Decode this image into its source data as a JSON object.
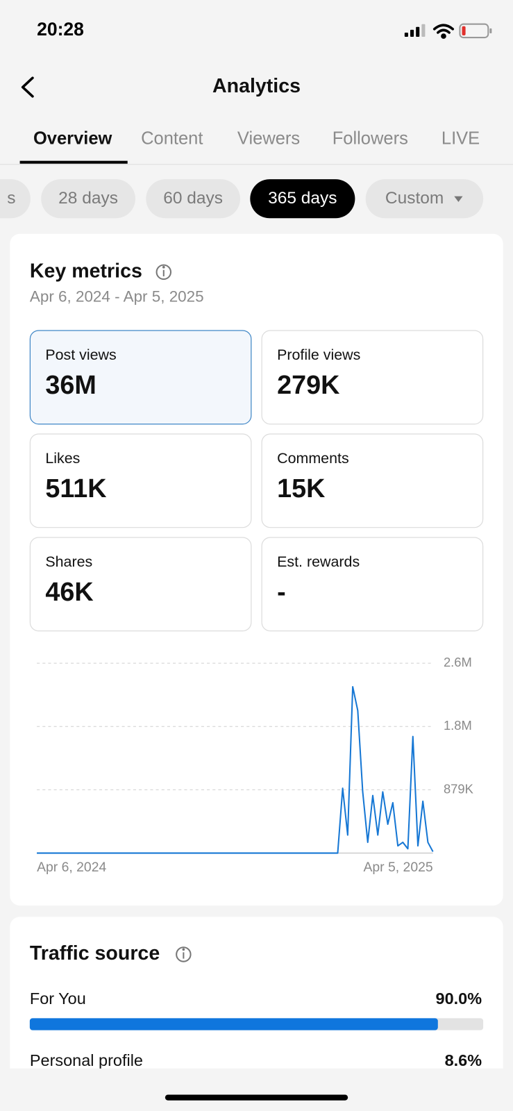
{
  "status_bar": {
    "time": "20:28"
  },
  "header": {
    "title": "Analytics"
  },
  "tabs": [
    "Overview",
    "Content",
    "Viewers",
    "Followers",
    "LIVE"
  ],
  "date_filters": [
    "s",
    "28 days",
    "60 days",
    "365 days",
    "Custom"
  ],
  "key_metrics": {
    "title": "Key metrics",
    "date_range": "Apr 6, 2024 - Apr 5, 2025",
    "metrics": [
      {
        "label": "Post views",
        "value": "36M"
      },
      {
        "label": "Profile views",
        "value": "279K"
      },
      {
        "label": "Likes",
        "value": "511K"
      },
      {
        "label": "Comments",
        "value": "15K"
      },
      {
        "label": "Shares",
        "value": "46K"
      },
      {
        "label": "Est. rewards",
        "value": "-"
      }
    ]
  },
  "chart_data": {
    "type": "line",
    "color": "#1677d4",
    "grid": true,
    "categories": [
      "Apr 6, 2024",
      null,
      null,
      null,
      null,
      null,
      null,
      null,
      null,
      null,
      null,
      null,
      null,
      null,
      null,
      null,
      null,
      null,
      null,
      null,
      null,
      null,
      null,
      null,
      null,
      null,
      null,
      null,
      null,
      null,
      null,
      null,
      null,
      null,
      null,
      null,
      null,
      null,
      null,
      null,
      null,
      null,
      null,
      null,
      null,
      null,
      null,
      null,
      null,
      null,
      null,
      null,
      null,
      null,
      null,
      null,
      null,
      null,
      null,
      null,
      null,
      null,
      null,
      null,
      null,
      null,
      null,
      null,
      null,
      null,
      null,
      null,
      null,
      null,
      null,
      null,
      null,
      null,
      null,
      "Apr 5, 2025"
    ],
    "values": [
      0,
      0,
      0,
      0,
      0,
      0,
      0,
      0,
      0,
      0,
      0,
      0,
      0,
      0,
      0,
      0,
      0,
      0,
      0,
      0,
      0,
      0,
      0,
      0,
      0,
      0,
      0,
      0,
      0,
      0,
      0,
      0,
      0,
      0,
      0,
      0,
      0,
      0,
      0,
      0,
      0,
      0,
      0,
      0,
      0,
      0,
      0,
      0,
      0,
      0,
      0,
      0,
      0,
      0,
      0,
      0,
      0,
      0,
      0,
      0,
      0,
      900000,
      250000,
      2310000,
      1980000,
      850000,
      150000,
      800000,
      250000,
      850000,
      400000,
      700000,
      100000,
      150000,
      60000,
      1620000,
      100000,
      720000,
      150000,
      20000
    ],
    "ylim": [
      0,
      2637000
    ],
    "yticks": [
      {
        "value": 879000,
        "label": "879K"
      },
      {
        "value": 1758000,
        "label": "1.8M"
      },
      {
        "value": 2637000,
        "label": "2.6M"
      }
    ]
  },
  "traffic_source": {
    "title": "Traffic source",
    "sources": [
      {
        "name": "For You",
        "value": 90.0,
        "value_label": "90.0%"
      },
      {
        "name": "Personal profile",
        "value": 8.6,
        "value_label": "8.6%"
      }
    ]
  }
}
